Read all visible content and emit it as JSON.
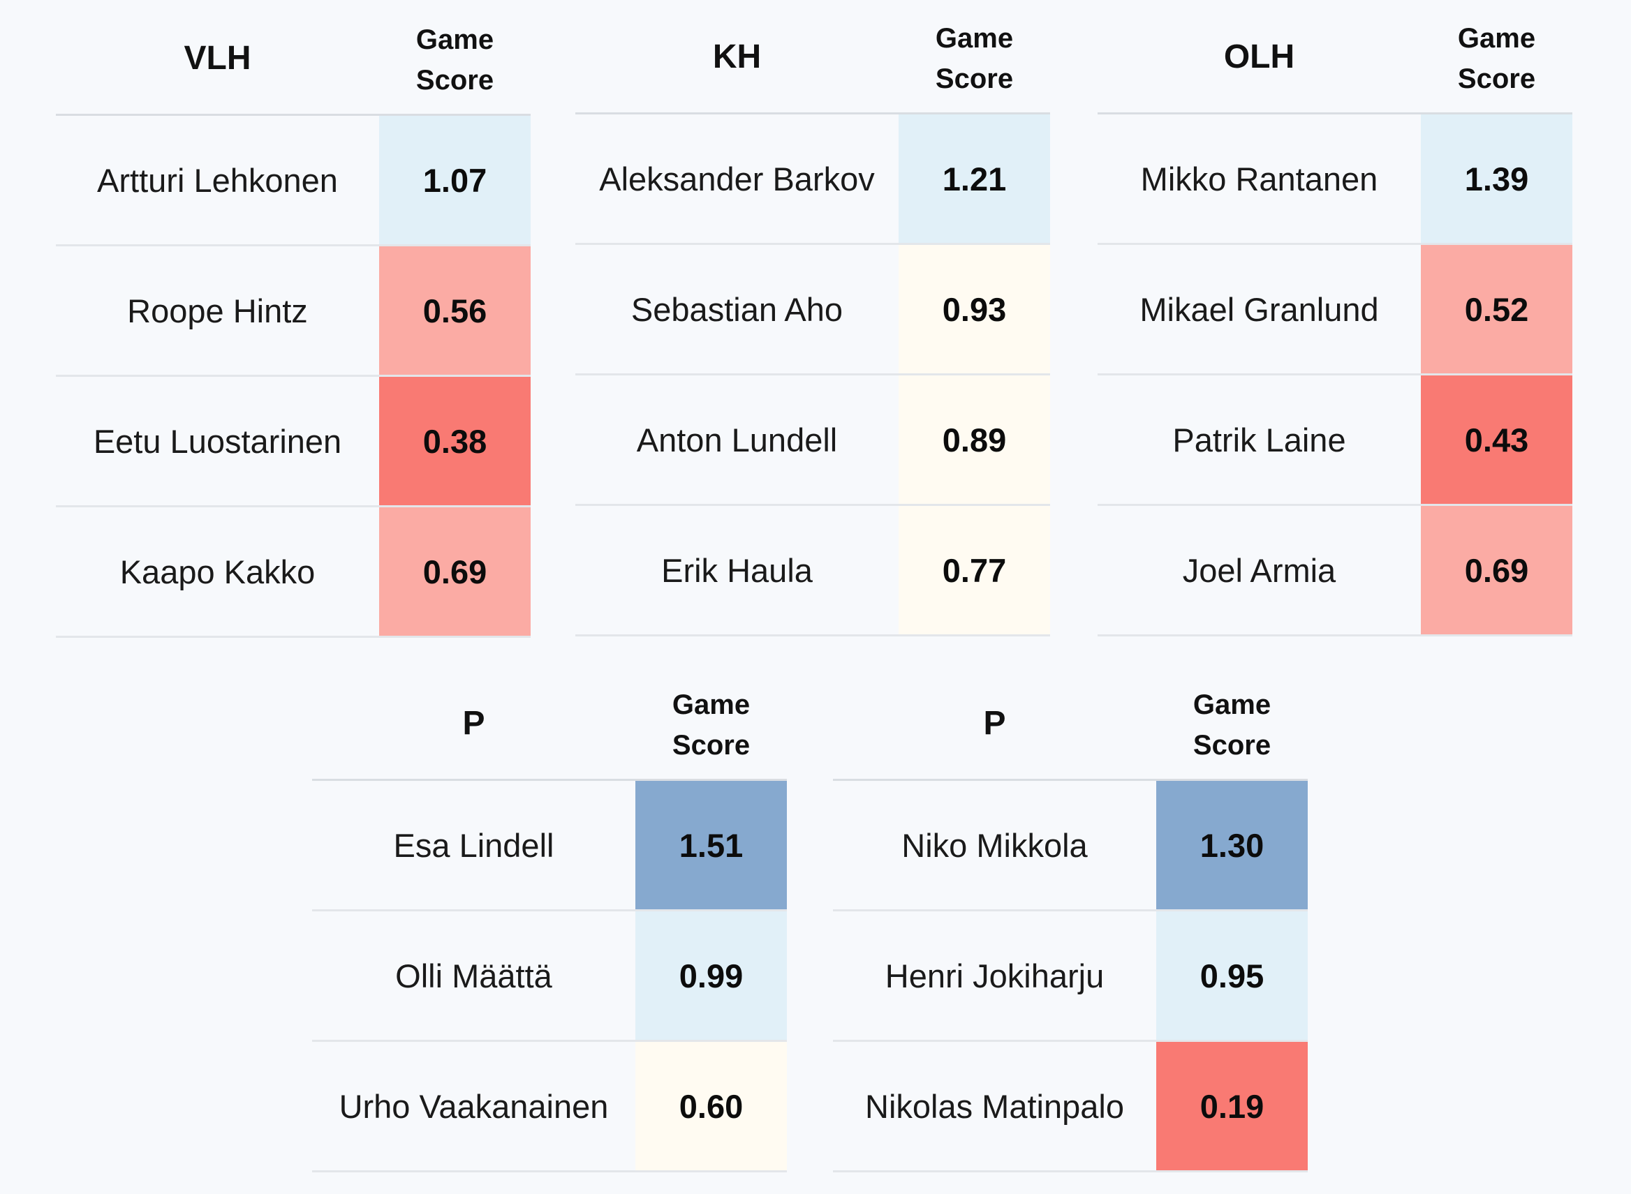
{
  "chart_data": [
    {
      "type": "table",
      "name_header": "VLH",
      "score_header": [
        "Game",
        "Score"
      ],
      "rows": [
        {
          "name": "Artturi Lehkonen",
          "score": "1.07",
          "color": "#e1f0f8"
        },
        {
          "name": "Roope Hintz",
          "score": "0.56",
          "color": "#fbaba4"
        },
        {
          "name": "Eetu Luostarinen",
          "score": "0.38",
          "color": "#f97a73"
        },
        {
          "name": "Kaapo Kakko",
          "score": "0.69",
          "color": "#fbaba4"
        }
      ]
    },
    {
      "type": "table",
      "name_header": "KH",
      "score_header": [
        "Game",
        "Score"
      ],
      "rows": [
        {
          "name": "Aleksander Barkov",
          "score": "1.21",
          "color": "#e1f0f8"
        },
        {
          "name": "Sebastian Aho",
          "score": "0.93",
          "color": "#fffbf2"
        },
        {
          "name": "Anton Lundell",
          "score": "0.89",
          "color": "#fffbf2"
        },
        {
          "name": "Erik Haula",
          "score": "0.77",
          "color": "#fffbf2"
        }
      ]
    },
    {
      "type": "table",
      "name_header": "OLH",
      "score_header": [
        "Game",
        "Score"
      ],
      "rows": [
        {
          "name": "Mikko Rantanen",
          "score": "1.39",
          "color": "#e1f0f8"
        },
        {
          "name": "Mikael Granlund",
          "score": "0.52",
          "color": "#fbaba4"
        },
        {
          "name": "Patrik Laine",
          "score": "0.43",
          "color": "#f97a73"
        },
        {
          "name": "Joel Armia",
          "score": "0.69",
          "color": "#fbaba4"
        }
      ]
    },
    {
      "type": "table",
      "name_header": "P",
      "score_header": [
        "Game",
        "Score"
      ],
      "rows": [
        {
          "name": "Esa Lindell",
          "score": "1.51",
          "color": "#86a9cf"
        },
        {
          "name": "Olli Määttä",
          "score": "0.99",
          "color": "#e1f0f8"
        },
        {
          "name": "Urho Vaakanainen",
          "score": "0.60",
          "color": "#fffbf2"
        }
      ]
    },
    {
      "type": "table",
      "name_header": "P",
      "score_header": [
        "Game",
        "Score"
      ],
      "rows": [
        {
          "name": "Niko Mikkola",
          "score": "1.30",
          "color": "#86a9cf"
        },
        {
          "name": "Henri Jokiharju",
          "score": "0.95",
          "color": "#e1f0f8"
        },
        {
          "name": "Nikolas Matinpalo",
          "score": "0.19",
          "color": "#f97a73"
        }
      ]
    }
  ]
}
